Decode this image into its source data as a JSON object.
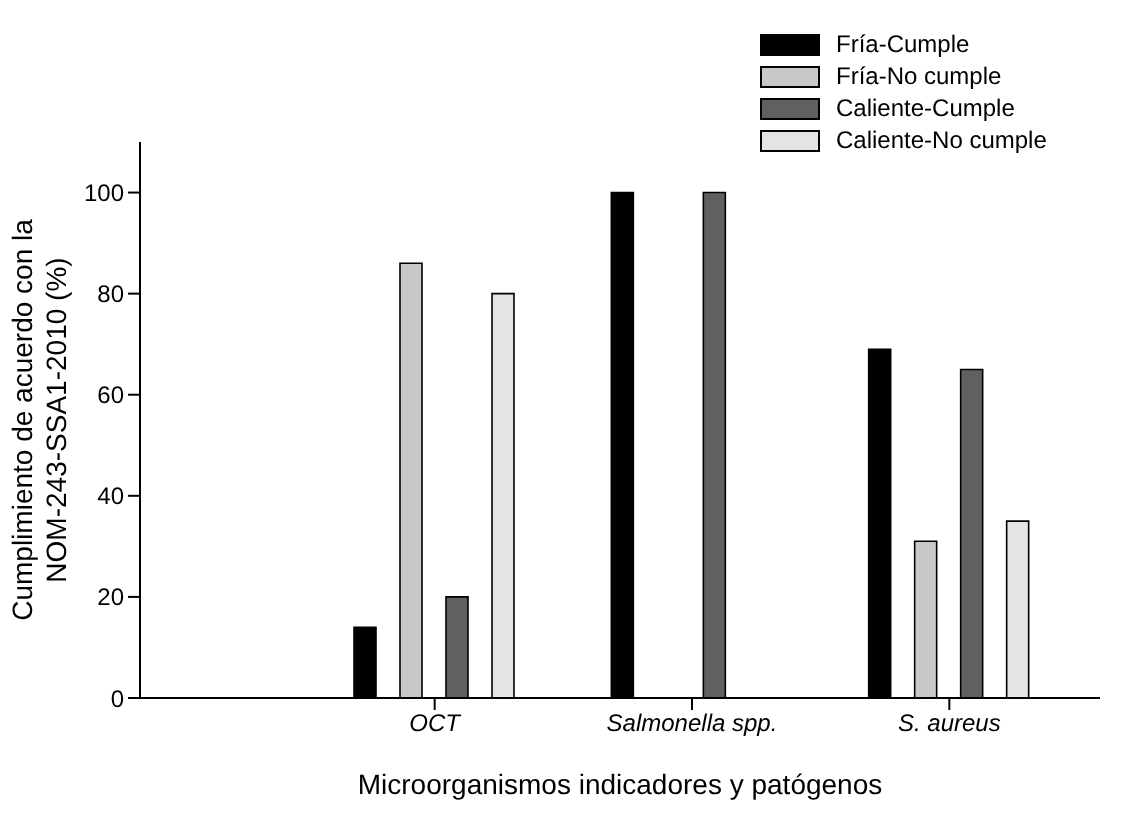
{
  "chart_data": {
    "type": "bar",
    "xlabel": "Microorganismos indicadores y patógenos",
    "ylabel": "Cumplimiento de acuerdo con la\nNOM-243-SSA1-2010 (%)",
    "categories": [
      "OCT",
      "Salmonella spp.",
      "S. aureus"
    ],
    "series": [
      {
        "name": "Fría-Cumple",
        "color": "#000000",
        "values": [
          14,
          100,
          69
        ]
      },
      {
        "name": "Fría-No cumple",
        "color": "#c8c8c8",
        "values": [
          86,
          0,
          31
        ]
      },
      {
        "name": "Caliente-Cumple",
        "color": "#606060",
        "values": [
          20,
          100,
          65
        ]
      },
      {
        "name": "Caliente-No cumple",
        "color": "#e4e4e4",
        "values": [
          80,
          0,
          35
        ]
      }
    ],
    "ylim": [
      0,
      110
    ],
    "yticks": [
      0,
      20,
      40,
      60,
      80,
      100
    ],
    "grid": false,
    "legend": "top right"
  }
}
